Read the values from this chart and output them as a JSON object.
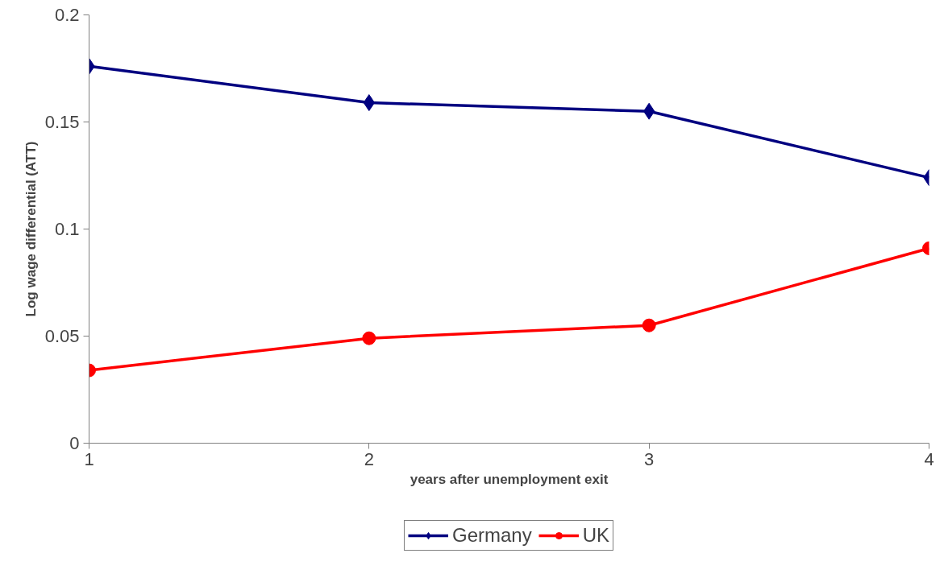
{
  "chart_data": {
    "type": "line",
    "xlabel": "years after unemployment exit",
    "ylabel": "Log wage differential (ATT)",
    "x": [
      1,
      2,
      3,
      4
    ],
    "series": [
      {
        "name": "Germany",
        "color": "#000080",
        "marker": "diamond",
        "values": [
          0.176,
          0.159,
          0.155,
          0.124
        ]
      },
      {
        "name": "UK",
        "color": "#ff0000",
        "marker": "circle",
        "values": [
          0.034,
          0.049,
          0.055,
          0.091
        ]
      }
    ],
    "xlim": [
      1,
      4
    ],
    "xticks": [
      1,
      2,
      3,
      4
    ],
    "ylim": [
      0,
      0.2
    ],
    "yticks": [
      0,
      0.05,
      0.1,
      0.15,
      0.2
    ],
    "grid": false,
    "legend": "bottom",
    "line_style": "solid"
  }
}
